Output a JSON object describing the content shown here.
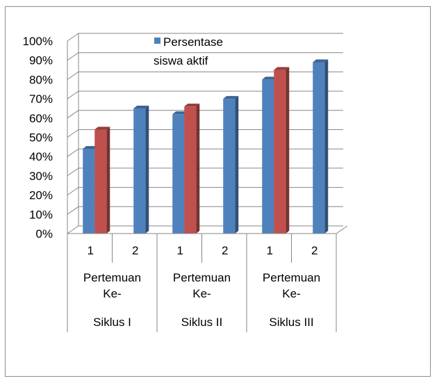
{
  "chart_data": {
    "type": "bar",
    "style": "3d-clustered-column",
    "categories": [
      {
        "siklus": "Siklus I",
        "pertemuan_label": "Pertemuan Ke-",
        "pertemuan": "1"
      },
      {
        "siklus": "Siklus I",
        "pertemuan_label": "Pertemuan Ke-",
        "pertemuan": "2"
      },
      {
        "siklus": "Siklus II",
        "pertemuan_label": "Pertemuan Ke-",
        "pertemuan": "1"
      },
      {
        "siklus": "Siklus II",
        "pertemuan_label": "Pertemuan Ke-",
        "pertemuan": "2"
      },
      {
        "siklus": "Siklus III",
        "pertemuan_label": "Pertemuan Ke-",
        "pertemuan": "1"
      },
      {
        "siklus": "Siklus III",
        "pertemuan_label": "Pertemuan Ke-",
        "pertemuan": "2"
      }
    ],
    "group_labels": {
      "pertemuan_label_line1": "Pertemuan",
      "pertemuan_label_line2": "Ke-",
      "siklus": [
        "Siklus I",
        "Siklus II",
        "Siklus III"
      ]
    },
    "series": [
      {
        "name": "Persentase siswa aktif",
        "color": "#4f81bd",
        "values": [
          44,
          65,
          62,
          70,
          80,
          89
        ]
      },
      {
        "name": "",
        "color": "#c0504d",
        "values": [
          54,
          null,
          66,
          null,
          85,
          null
        ]
      }
    ],
    "legend": {
      "entries": [
        {
          "line1": "Persentase",
          "line2": "siswa aktif",
          "color": "#4f81bd"
        }
      ],
      "placement": "top-center"
    },
    "y_ticks": [
      "0%",
      "10%",
      "20%",
      "30%",
      "40%",
      "50%",
      "60%",
      "70%",
      "80%",
      "90%",
      "100%"
    ],
    "ylim": [
      0,
      100
    ],
    "grid": true,
    "title": "",
    "xlabel": "",
    "ylabel": ""
  }
}
